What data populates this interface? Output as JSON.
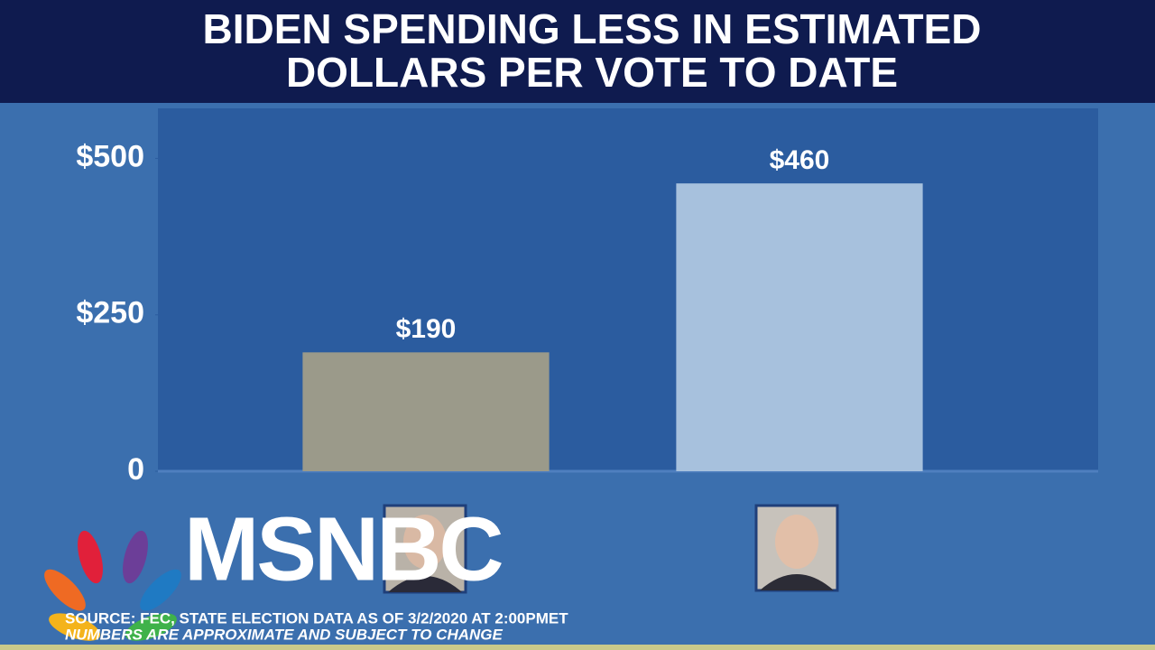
{
  "chart_data": {
    "type": "bar",
    "title": "BIDEN SPENDING LESS IN ESTIMATED DOLLARS PER VOTE TO DATE",
    "categories": [
      null,
      null
    ],
    "values": [
      190,
      460
    ],
    "value_labels": [
      "$190",
      "$460"
    ],
    "colors": [
      "#9b9a8a",
      "#a7c1dd"
    ],
    "ylim": [
      0,
      580
    ],
    "yticks": [
      0,
      {
        "value": 250,
        "label": "$250"
      },
      {
        "value": 500,
        "label": "$500"
      }
    ],
    "notes": [
      "SOURCE: FEC, STATE ELECTION DATA AS OF 3/2/2020 AT 2:00PMET",
      "NUMBERS ARE APPROXIMATE AND SUBJECT TO CHANGE"
    ]
  },
  "logo": "MSNBC"
}
